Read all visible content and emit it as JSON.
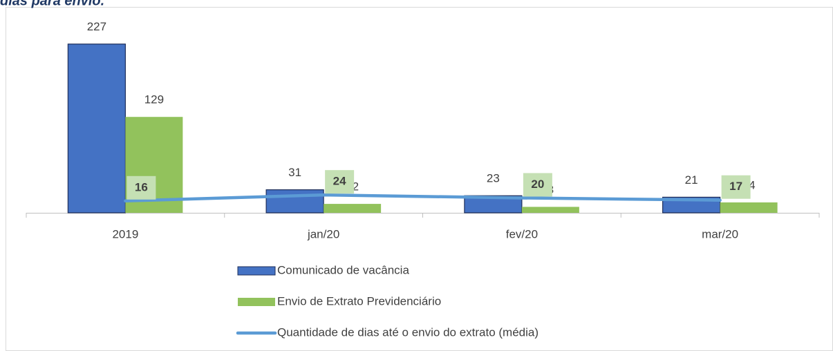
{
  "chart_data": {
    "type": "bar",
    "title": "dias para envio.",
    "categories": [
      "2019",
      "jan/20",
      "fev/20",
      "mar/20"
    ],
    "series": [
      {
        "name": "Comunicado de vacância",
        "color": "#4472c4",
        "type": "bar",
        "values": [
          227,
          31,
          23,
          21
        ]
      },
      {
        "name": "Envio de Extrato Previdenciário",
        "color": "#92c25c",
        "type": "bar",
        "values": [
          129,
          12,
          8,
          14
        ]
      },
      {
        "name": "Quantidade de dias até o envio do extrato (média)",
        "color": "#5b9bd5",
        "type": "line",
        "values": [
          16,
          24,
          20,
          17
        ]
      }
    ],
    "ylim": [
      0,
      250
    ]
  }
}
